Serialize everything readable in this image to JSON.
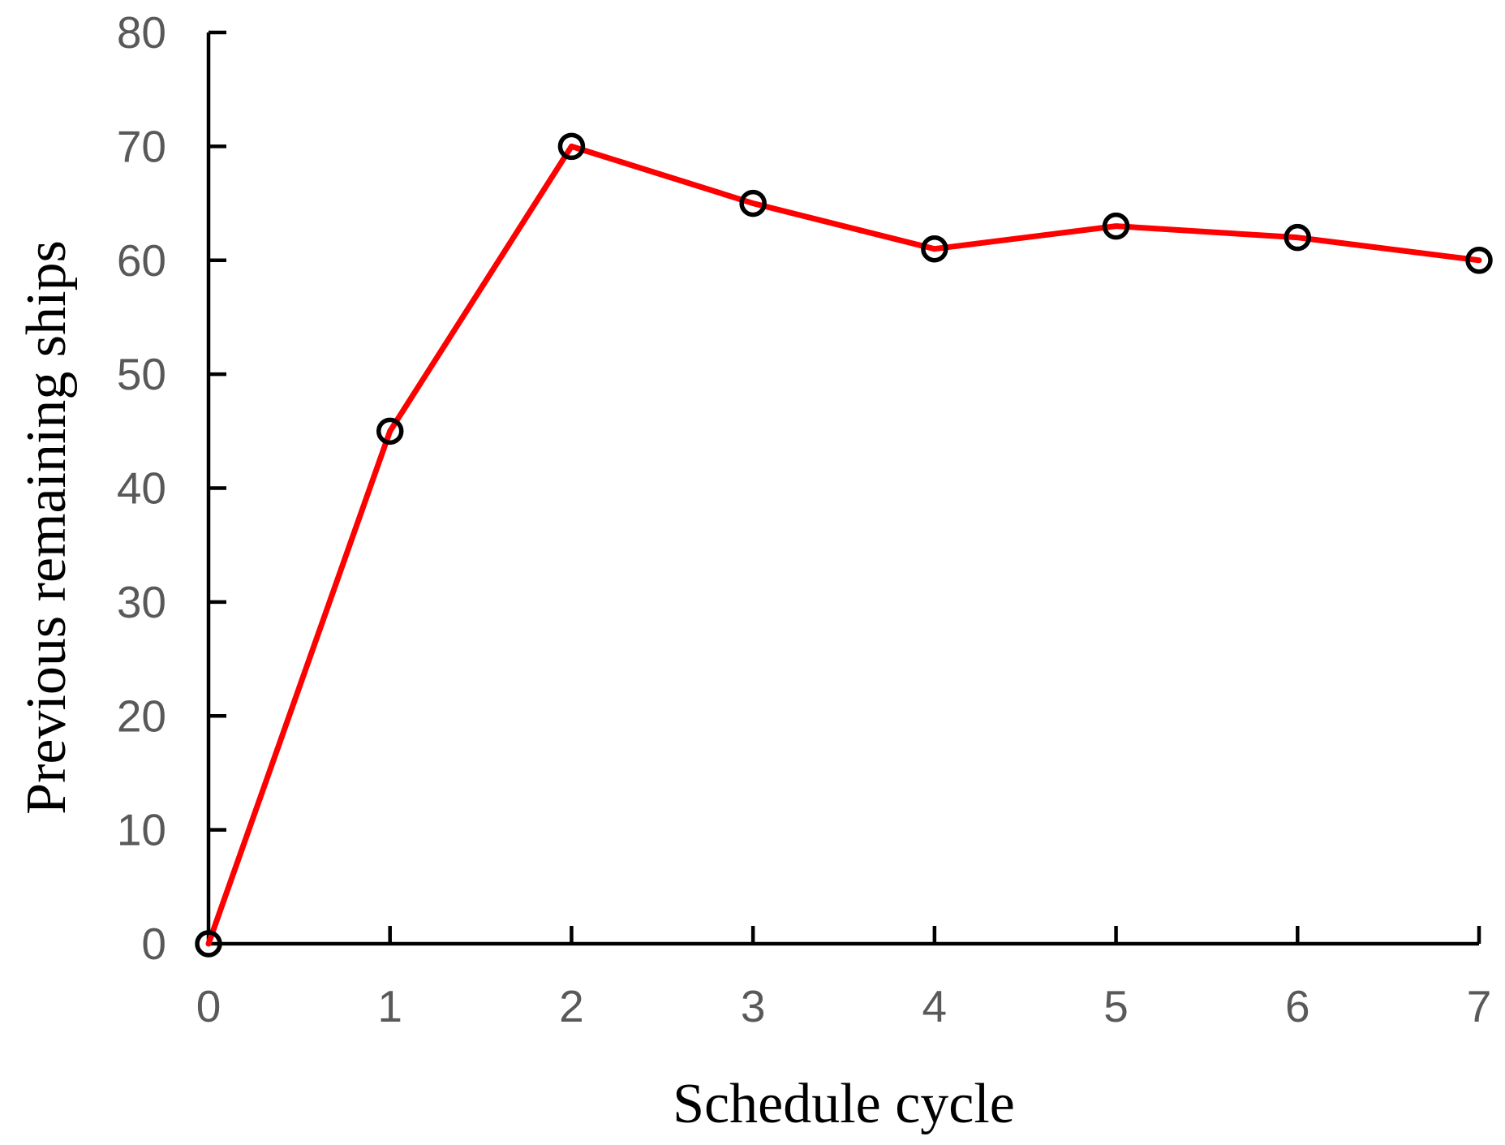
{
  "chart_data": {
    "type": "line",
    "title": "",
    "xlabel": "Schedule cycle",
    "ylabel": "Previous remaining ships",
    "x": [
      0,
      1,
      2,
      3,
      4,
      5,
      6,
      7
    ],
    "series": [
      {
        "name": "Previous remaining ships",
        "values": [
          0,
          45,
          70,
          65,
          61,
          63,
          62,
          60
        ]
      }
    ],
    "xlim": [
      0,
      7
    ],
    "ylim": [
      0,
      80
    ],
    "x_tick_step": 1,
    "y_tick_step": 10,
    "x_tick_labels": [
      "0",
      "1",
      "2",
      "3",
      "4",
      "5",
      "6",
      "7"
    ],
    "y_tick_labels": [
      "0",
      "10",
      "20",
      "30",
      "40",
      "50",
      "60",
      "70",
      "80"
    ],
    "grid": false,
    "legend_position": "none",
    "marker": "open-circle",
    "colors": {
      "line": "#fe0000",
      "marker_stroke": "#000000",
      "axis": "#000000",
      "tick_label": "#595959",
      "axis_title": "#000000",
      "background": "#ffffff"
    }
  }
}
